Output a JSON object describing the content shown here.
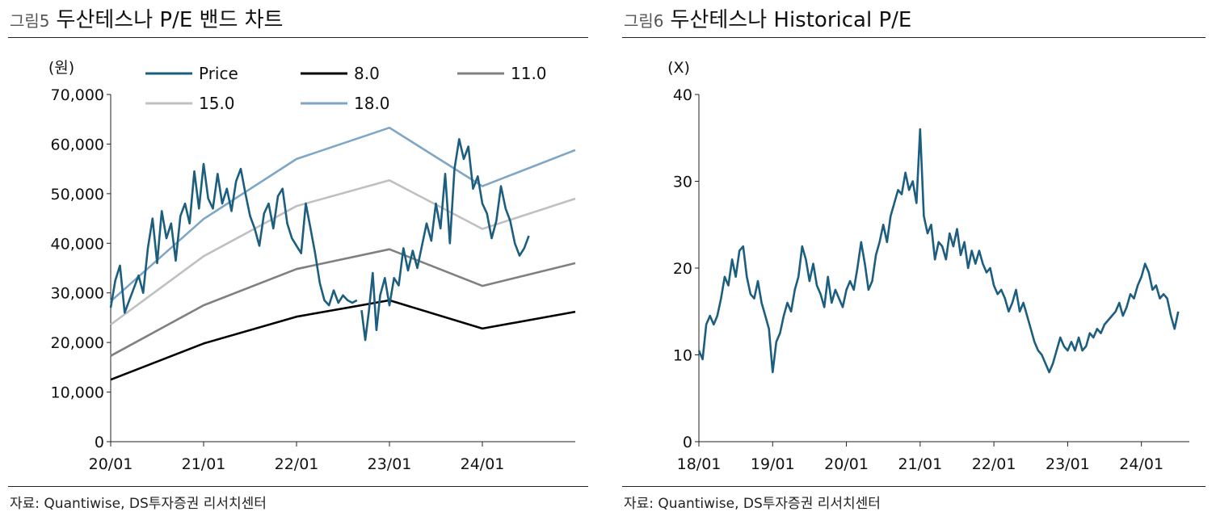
{
  "figures": [
    {
      "number": "그림5",
      "title": "두산테스나 P/E 밴드 차트",
      "source": "자료: Quantiwise, DS투자증권 리서치센터"
    },
    {
      "number": "그림6",
      "title": "두산테스나 Historical P/E",
      "source": "자료: Quantiwise, DS투자증권 리서치센터"
    }
  ],
  "chart_data": [
    {
      "type": "line",
      "unit_label": "(원)",
      "ylim": [
        0,
        70000
      ],
      "y_ticks": [
        0,
        10000,
        20000,
        30000,
        40000,
        50000,
        60000,
        70000
      ],
      "y_tick_labels": [
        "0",
        "10,000",
        "20,000",
        "30,000",
        "40,000",
        "50,000",
        "60,000",
        "70,000"
      ],
      "x_range": [
        2020.0,
        2025.0
      ],
      "x_ticks": [
        2020.0,
        2021.0,
        2022.0,
        2023.0,
        2024.0
      ],
      "x_tick_labels": [
        "20/01",
        "21/01",
        "22/01",
        "23/01",
        "24/01"
      ],
      "legend": [
        "Price",
        "8.0",
        "11.0",
        "15.0",
        "18.0"
      ],
      "colors": {
        "Price": "#1b5e80",
        "8.0": "#000000",
        "11.0": "#808080",
        "15.0": "#c0c0c0",
        "18.0": "#7fa6c4"
      },
      "series": [
        {
          "name": "8.0",
          "x": [
            2020.0,
            2021.0,
            2022.0,
            2023.0,
            2024.0,
            2025.0
          ],
          "values": [
            12500,
            19800,
            25200,
            28500,
            22800,
            26200
          ]
        },
        {
          "name": "11.0",
          "x": [
            2020.0,
            2021.0,
            2022.0,
            2023.0,
            2024.0,
            2025.0
          ],
          "values": [
            17300,
            27500,
            34800,
            38800,
            31400,
            36000
          ]
        },
        {
          "name": "15.0",
          "x": [
            2020.0,
            2021.0,
            2022.0,
            2023.0,
            2024.0,
            2025.0
          ],
          "values": [
            23600,
            37400,
            47500,
            52700,
            42900,
            49000
          ]
        },
        {
          "name": "18.0",
          "x": [
            2020.0,
            2021.0,
            2022.0,
            2023.0,
            2024.0,
            2025.0
          ],
          "values": [
            28300,
            44900,
            57000,
            63300,
            51500,
            58800
          ]
        },
        {
          "name": "Price",
          "segments": [
            {
              "x": [
                2020.0,
                2020.05,
                2020.1,
                2020.15,
                2020.2,
                2020.25,
                2020.3,
                2020.35,
                2020.4,
                2020.45,
                2020.5,
                2020.55,
                2020.6,
                2020.65,
                2020.7,
                2020.75,
                2020.8,
                2020.85,
                2020.9,
                2020.95,
                2021.0,
                2021.05,
                2021.1,
                2021.15,
                2021.2,
                2021.25,
                2021.3,
                2021.35,
                2021.4,
                2021.45,
                2021.5,
                2021.55,
                2021.6,
                2021.65,
                2021.7,
                2021.75,
                2021.8,
                2021.85,
                2021.9,
                2021.95,
                2022.0,
                2022.05,
                2022.1,
                2022.15,
                2022.2,
                2022.25,
                2022.3,
                2022.35,
                2022.4,
                2022.45,
                2022.5,
                2022.55,
                2022.6,
                2022.65
              ],
              "values": [
                27000,
                32500,
                35500,
                26000,
                28500,
                31000,
                33500,
                30000,
                39000,
                45000,
                36000,
                46500,
                41000,
                44000,
                36500,
                45500,
                48000,
                44000,
                54500,
                47000,
                56000,
                49000,
                47000,
                54000,
                48000,
                51000,
                46500,
                52500,
                55000,
                50000,
                45500,
                43000,
                39500,
                46000,
                48000,
                43000,
                49500,
                51000,
                44000,
                41000,
                39500,
                38000,
                48000,
                43000,
                38000,
                32000,
                28500,
                27500,
                30500,
                28000,
                29500,
                28500,
                28000,
                28500
              ]
            },
            {
              "x": [
                2022.7,
                2022.74,
                2022.78,
                2022.82,
                2022.86,
                2022.9,
                2022.95,
                2023.0,
                2023.05,
                2023.1,
                2023.15,
                2023.2,
                2023.25,
                2023.3,
                2023.35,
                2023.4,
                2023.45,
                2023.5,
                2023.55,
                2023.6,
                2023.65,
                2023.7,
                2023.75,
                2023.8,
                2023.85,
                2023.9,
                2023.95,
                2024.0,
                2024.05,
                2024.1,
                2024.15,
                2024.2,
                2024.25,
                2024.3,
                2024.35,
                2024.4,
                2024.45,
                2024.5
              ],
              "values": [
                26500,
                20500,
                26500,
                34000,
                22500,
                29500,
                33000,
                27500,
                33000,
                31500,
                39000,
                34500,
                38500,
                35000,
                39500,
                44000,
                40500,
                48000,
                43000,
                54000,
                40000,
                55000,
                61000,
                57000,
                59500,
                51000,
                53500,
                48000,
                46000,
                41000,
                44500,
                51500,
                47000,
                44500,
                40000,
                37500,
                39000,
                41500
              ]
            }
          ]
        }
      ]
    },
    {
      "type": "line",
      "unit_label": "(X)",
      "ylim": [
        0,
        40
      ],
      "y_ticks": [
        0,
        10,
        20,
        30,
        40
      ],
      "y_tick_labels": [
        "0",
        "10",
        "20",
        "30",
        "40"
      ],
      "x_range": [
        2018.0,
        2024.65
      ],
      "x_ticks": [
        2018.0,
        2019.0,
        2020.0,
        2021.0,
        2022.0,
        2023.0,
        2024.0
      ],
      "x_tick_labels": [
        "18/01",
        "19/01",
        "20/01",
        "21/01",
        "22/01",
        "23/01",
        "24/01"
      ],
      "color": "#1b5e80",
      "series": [
        {
          "name": "P/E",
          "x": [
            2018.0,
            2018.05,
            2018.1,
            2018.15,
            2018.2,
            2018.25,
            2018.3,
            2018.35,
            2018.4,
            2018.45,
            2018.5,
            2018.55,
            2018.6,
            2018.65,
            2018.7,
            2018.75,
            2018.8,
            2018.85,
            2018.9,
            2018.95,
            2019.0,
            2019.05,
            2019.1,
            2019.15,
            2019.2,
            2019.25,
            2019.3,
            2019.35,
            2019.4,
            2019.45,
            2019.5,
            2019.55,
            2019.6,
            2019.65,
            2019.7,
            2019.75,
            2019.8,
            2019.85,
            2019.9,
            2019.95,
            2020.0,
            2020.05,
            2020.1,
            2020.15,
            2020.2,
            2020.25,
            2020.3,
            2020.35,
            2020.4,
            2020.45,
            2020.5,
            2020.55,
            2020.6,
            2020.65,
            2020.7,
            2020.75,
            2020.8,
            2020.85,
            2020.9,
            2020.95,
            2021.0,
            2021.05,
            2021.1,
            2021.15,
            2021.2,
            2021.25,
            2021.3,
            2021.35,
            2021.4,
            2021.45,
            2021.5,
            2021.55,
            2021.6,
            2021.65,
            2021.7,
            2021.75,
            2021.8,
            2021.85,
            2021.9,
            2021.95,
            2022.0,
            2022.05,
            2022.1,
            2022.15,
            2022.2,
            2022.25,
            2022.3,
            2022.35,
            2022.4,
            2022.45,
            2022.5,
            2022.55,
            2022.6,
            2022.65,
            2022.7,
            2022.75,
            2022.8,
            2022.85,
            2022.9,
            2022.95,
            2023.0,
            2023.05,
            2023.1,
            2023.15,
            2023.2,
            2023.25,
            2023.3,
            2023.35,
            2023.4,
            2023.45,
            2023.5,
            2023.55,
            2023.6,
            2023.65,
            2023.7,
            2023.75,
            2023.8,
            2023.85,
            2023.9,
            2023.95,
            2024.0,
            2024.05,
            2024.1,
            2024.15,
            2024.2,
            2024.25,
            2024.3,
            2024.35,
            2024.4,
            2024.45,
            2024.5
          ],
          "values": [
            10.5,
            9.5,
            13.5,
            14.5,
            13.5,
            14.5,
            16.5,
            19,
            18,
            21,
            19,
            22,
            22.5,
            19,
            17,
            16.5,
            18.5,
            16,
            14.5,
            13,
            8,
            11.5,
            12.5,
            14.5,
            16,
            15,
            17.5,
            19,
            22.5,
            21,
            18.5,
            20.5,
            18,
            17,
            15.5,
            19,
            16,
            17.5,
            16.5,
            15.5,
            17.5,
            18.5,
            17.5,
            20,
            23,
            20.5,
            17.5,
            18.5,
            21.5,
            23,
            25,
            23,
            26,
            27.5,
            29,
            28.5,
            31,
            29,
            30,
            27.5,
            36,
            26,
            24,
            25,
            21,
            23,
            22.5,
            21,
            24,
            22.5,
            24.5,
            21.5,
            23,
            20,
            22,
            20.5,
            22,
            20.5,
            19.5,
            20,
            18,
            17,
            17.5,
            16.5,
            15,
            16,
            17.5,
            15,
            16,
            14.5,
            13,
            11.5,
            10.5,
            10,
            9,
            8,
            9,
            10.5,
            12,
            11,
            10.5,
            11.5,
            10.5,
            12,
            10.5,
            11,
            12.5,
            12,
            13,
            12.5,
            13.5,
            14,
            14.5,
            15,
            16,
            14.5,
            15.5,
            17,
            16.5,
            18,
            19,
            20.5,
            19.5,
            17.5,
            18,
            16.5,
            17,
            16.5,
            14.5,
            13,
            15
          ]
        }
      ]
    }
  ]
}
